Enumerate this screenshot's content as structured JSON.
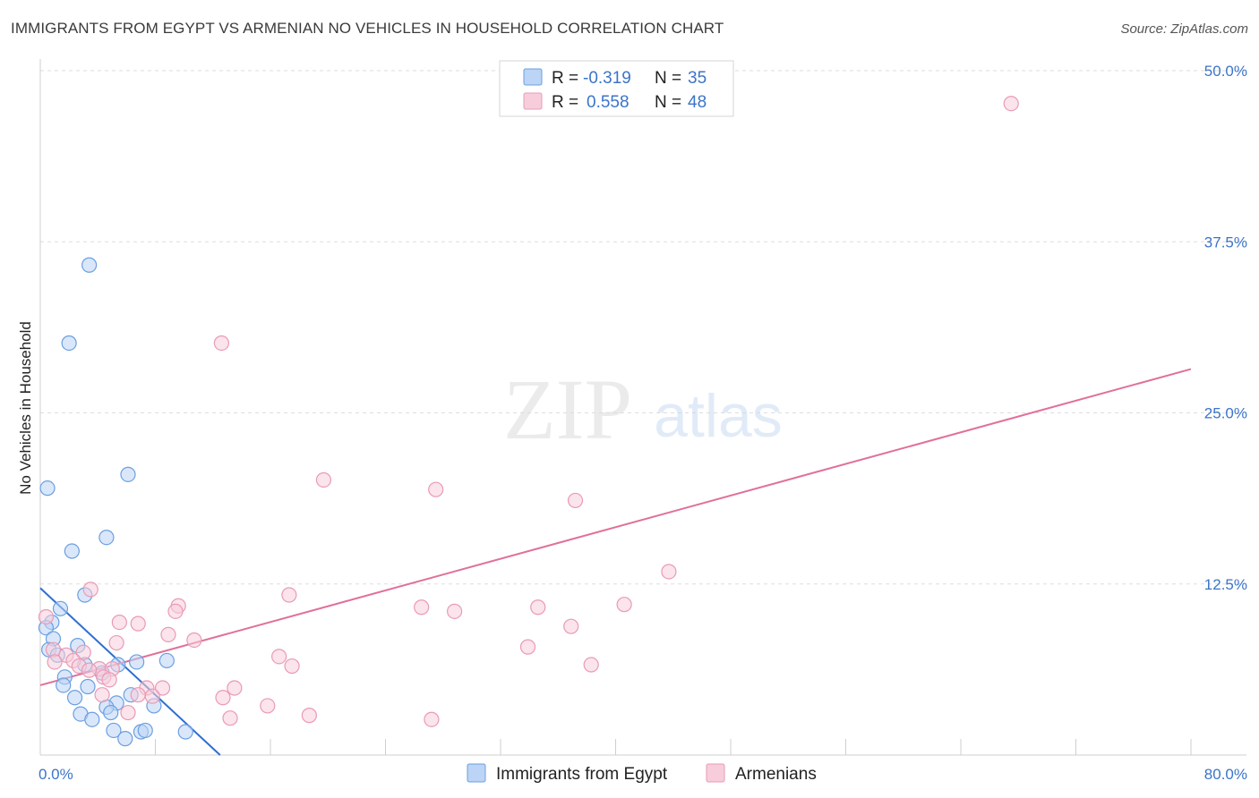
{
  "header": {
    "title": "IMMIGRANTS FROM EGYPT VS ARMENIAN NO VEHICLES IN HOUSEHOLD CORRELATION CHART",
    "source": "Source: ZipAtlas.com"
  },
  "watermark": {
    "zip": "ZIP",
    "atlas": "atlas"
  },
  "legend": {
    "r_label": "R =",
    "n_label": "N =",
    "entries": [
      {
        "r": "-0.319",
        "n": "35"
      },
      {
        "r": "0.558",
        "n": "48"
      }
    ]
  },
  "colors": {
    "egypt": "#6a9fe0",
    "egypt_fill": "#bcd4f5",
    "egypt_line": "#2f6fd0",
    "armenian": "#e99ab6",
    "armenian_fill": "#f7cddb",
    "armenian_line": "#e0709a",
    "tick_label": "#3b74c9",
    "grid": "#dddddd"
  },
  "chart_data": {
    "type": "scatter",
    "title": "IMMIGRANTS FROM EGYPT VS ARMENIAN NO VEHICLES IN HOUSEHOLD CORRELATION CHART",
    "xlabel": "",
    "ylabel": "No Vehicles in Household",
    "xlim": [
      0,
      80
    ],
    "ylim": [
      0,
      50
    ],
    "x_tick_labels": [
      "0.0%",
      "80.0%"
    ],
    "y_ticks": [
      12.5,
      25,
      37.5,
      50
    ],
    "y_tick_labels": [
      "12.5%",
      "25.0%",
      "37.5%",
      "50.0%"
    ],
    "grid": true,
    "legend_position": "top-center",
    "series": [
      {
        "name": "Immigrants from Egypt",
        "color_key": "egypt",
        "r": -0.319,
        "n": 35,
        "trend": {
          "x": [
            0,
            12.5
          ],
          "y": [
            12.2,
            0
          ]
        },
        "points": [
          [
            3.4,
            35.8
          ],
          [
            2.0,
            30.1
          ],
          [
            0.5,
            19.5
          ],
          [
            6.1,
            20.5
          ],
          [
            4.6,
            15.9
          ],
          [
            2.2,
            14.9
          ],
          [
            3.1,
            11.7
          ],
          [
            1.4,
            10.7
          ],
          [
            0.8,
            9.7
          ],
          [
            0.4,
            9.3
          ],
          [
            0.9,
            8.5
          ],
          [
            2.6,
            8.0
          ],
          [
            0.6,
            7.7
          ],
          [
            1.2,
            7.3
          ],
          [
            3.1,
            6.6
          ],
          [
            5.4,
            6.6
          ],
          [
            6.7,
            6.8
          ],
          [
            8.8,
            6.9
          ],
          [
            4.3,
            6.0
          ],
          [
            1.7,
            5.7
          ],
          [
            1.6,
            5.1
          ],
          [
            3.3,
            5.0
          ],
          [
            2.4,
            4.2
          ],
          [
            6.3,
            4.4
          ],
          [
            5.3,
            3.8
          ],
          [
            7.9,
            3.6
          ],
          [
            4.6,
            3.5
          ],
          [
            2.8,
            3.0
          ],
          [
            4.9,
            3.1
          ],
          [
            3.6,
            2.6
          ],
          [
            5.1,
            1.8
          ],
          [
            7.0,
            1.7
          ],
          [
            7.3,
            1.8
          ],
          [
            10.1,
            1.7
          ],
          [
            5.9,
            1.2
          ]
        ]
      },
      {
        "name": "Armenians",
        "color_key": "armenian",
        "r": 0.558,
        "n": 48,
        "trend": {
          "x": [
            0,
            80
          ],
          "y": [
            5.1,
            28.2
          ]
        },
        "points": [
          [
            67.5,
            47.6
          ],
          [
            12.6,
            30.1
          ],
          [
            19.7,
            20.1
          ],
          [
            27.5,
            19.4
          ],
          [
            37.2,
            18.6
          ],
          [
            43.7,
            13.4
          ],
          [
            17.3,
            11.7
          ],
          [
            3.5,
            12.1
          ],
          [
            9.6,
            10.9
          ],
          [
            9.4,
            10.5
          ],
          [
            26.5,
            10.8
          ],
          [
            28.8,
            10.5
          ],
          [
            34.6,
            10.8
          ],
          [
            40.6,
            11.0
          ],
          [
            5.5,
            9.7
          ],
          [
            6.8,
            9.6
          ],
          [
            36.9,
            9.4
          ],
          [
            8.9,
            8.8
          ],
          [
            10.7,
            8.4
          ],
          [
            5.3,
            8.2
          ],
          [
            33.9,
            7.9
          ],
          [
            0.9,
            7.7
          ],
          [
            1.8,
            7.3
          ],
          [
            3.0,
            7.5
          ],
          [
            16.6,
            7.2
          ],
          [
            2.3,
            6.9
          ],
          [
            1.0,
            6.8
          ],
          [
            2.7,
            6.5
          ],
          [
            4.1,
            6.3
          ],
          [
            3.4,
            6.2
          ],
          [
            5.0,
            6.3
          ],
          [
            17.5,
            6.5
          ],
          [
            38.3,
            6.6
          ],
          [
            4.4,
            5.7
          ],
          [
            4.8,
            5.5
          ],
          [
            8.5,
            4.9
          ],
          [
            7.4,
            4.9
          ],
          [
            13.5,
            4.9
          ],
          [
            4.3,
            4.4
          ],
          [
            6.8,
            4.4
          ],
          [
            7.8,
            4.3
          ],
          [
            12.7,
            4.2
          ],
          [
            15.8,
            3.6
          ],
          [
            6.1,
            3.1
          ],
          [
            18.7,
            2.9
          ],
          [
            13.2,
            2.7
          ],
          [
            27.2,
            2.6
          ],
          [
            0.4,
            10.1
          ]
        ]
      }
    ]
  }
}
